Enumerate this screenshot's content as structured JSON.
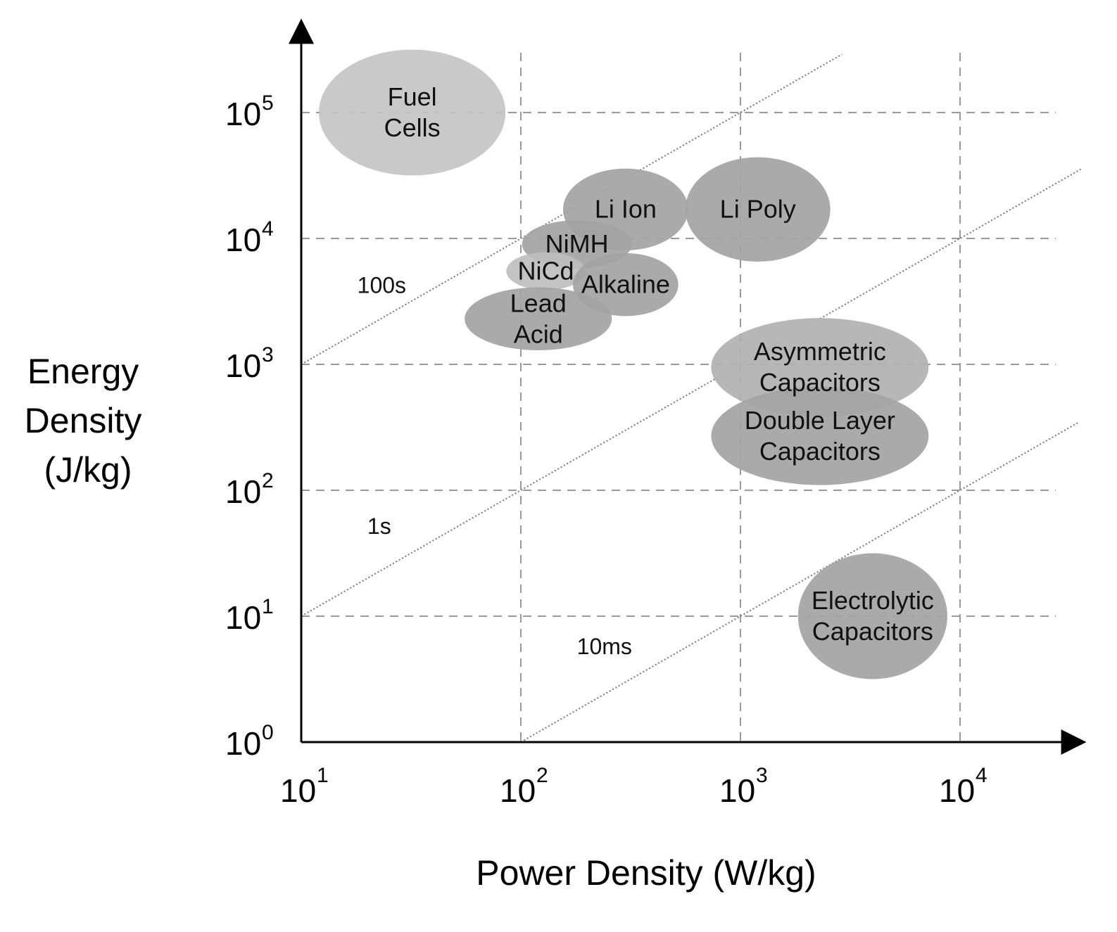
{
  "chart_data": {
    "type": "scatter",
    "subtype": "ragone-plot",
    "title": "",
    "xlabel": "Power Density (W/kg)",
    "ylabel_lines": [
      "Energy",
      "Density",
      "(J/kg)"
    ],
    "xscale": "log",
    "yscale": "log",
    "xlim": [
      10,
      40000
    ],
    "ylim": [
      1,
      300000
    ],
    "grid": "dashed",
    "x_ticks": [
      {
        "base": "10",
        "exp": "1",
        "value": 10
      },
      {
        "base": "10",
        "exp": "2",
        "value": 100
      },
      {
        "base": "10",
        "exp": "3",
        "value": 1000
      },
      {
        "base": "10",
        "exp": "4",
        "value": 10000
      }
    ],
    "y_ticks": [
      {
        "base": "10",
        "exp": "0",
        "value": 1
      },
      {
        "base": "10",
        "exp": "1",
        "value": 10
      },
      {
        "base": "10",
        "exp": "2",
        "value": 100
      },
      {
        "base": "10",
        "exp": "3",
        "value": 1000
      },
      {
        "base": "10",
        "exp": "4",
        "value": 10000
      },
      {
        "base": "10",
        "exp": "5",
        "value": 100000
      }
    ],
    "regions": [
      {
        "name": "fuel-cells",
        "label_lines": [
          "Fuel",
          "Cells"
        ],
        "x": 32,
        "y": 100000,
        "x_decades": 0.85,
        "y_decades": 1.0,
        "fill": "#c4c4c4"
      },
      {
        "name": "li-ion",
        "label_lines": [
          "Li Ion"
        ],
        "x": 300,
        "y": 17000,
        "x_decades": 0.57,
        "y_decades": 0.65,
        "fill": "#a3a3a3"
      },
      {
        "name": "li-poly",
        "label_lines": [
          "Li Poly"
        ],
        "x": 1200,
        "y": 17000,
        "x_decades": 0.66,
        "y_decades": 0.83,
        "fill": "#a3a3a3"
      },
      {
        "name": "nimh",
        "label_lines": [
          "NiMH"
        ],
        "x": 180,
        "y": 9000,
        "x_decades": 0.5,
        "y_decades": 0.38,
        "fill": "#a3a3a3"
      },
      {
        "name": "nicd",
        "label_lines": [
          "NiCd"
        ],
        "x": 130,
        "y": 5500,
        "x_decades": 0.36,
        "y_decades": 0.3,
        "fill": "#bebebe"
      },
      {
        "name": "alkaline",
        "label_lines": [
          "Alkaline"
        ],
        "x": 300,
        "y": 4300,
        "x_decades": 0.48,
        "y_decades": 0.5,
        "fill": "#a3a3a3"
      },
      {
        "name": "lead-acid",
        "label_lines": [
          "Lead",
          "Acid"
        ],
        "x": 120,
        "y": 2300,
        "x_decades": 0.67,
        "y_decades": 0.5,
        "fill": "#a3a3a3"
      },
      {
        "name": "asymmetric-capacitors",
        "label_lines": [
          "Asymmetric",
          "Capacitors"
        ],
        "x": 2300,
        "y": 950,
        "x_decades": 0.99,
        "y_decades": 0.78,
        "fill": "#b1b1b1"
      },
      {
        "name": "double-layer-capacitors",
        "label_lines": [
          "Double Layer",
          "Capacitors"
        ],
        "x": 2300,
        "y": 270,
        "x_decades": 0.99,
        "y_decades": 0.78,
        "fill": "#a3a3a3"
      },
      {
        "name": "electrolytic-capacitors",
        "label_lines": [
          "Electrolytic",
          "Capacitors"
        ],
        "x": 4000,
        "y": 10,
        "x_decades": 0.68,
        "y_decades": 1.0,
        "fill": "#a3a3a3"
      }
    ],
    "time_constant_lines": [
      {
        "name": "100s",
        "label": "100s",
        "seconds": 100,
        "x_start": 10,
        "x_end": 2900,
        "label_x": 18,
        "label_y": 3700
      },
      {
        "name": "1s",
        "label": "1s",
        "seconds": 1,
        "x_start": 10,
        "x_end": 36000,
        "label_x": 20,
        "label_y": 45
      },
      {
        "name": "10ms",
        "label": "10ms",
        "seconds": 0.01,
        "x_start": 100,
        "x_end": 35000,
        "label_x": 180,
        "label_y": 5
      }
    ]
  }
}
